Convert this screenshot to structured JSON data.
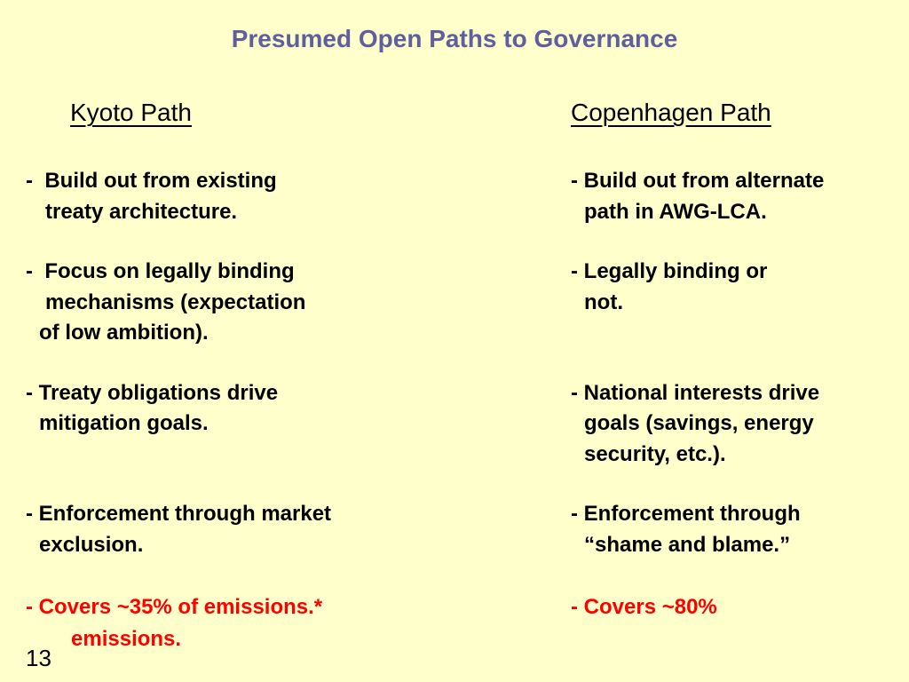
{
  "slide": {
    "title": "Presumed Open Paths to Governance",
    "page_number": "13"
  },
  "kyoto": {
    "heading": "Kyoto Path",
    "lines": [
      "-  Build out from existing",
      "treaty architecture.",
      "-  Focus on legally binding",
      "mechanisms (expectation",
      "of low ambition).",
      "- Treaty obligations drive",
      "mitigation goals.",
      "- Enforcement through market",
      "exclusion.",
      "- Covers ~35% of emissions.*",
      "emissions."
    ]
  },
  "copenhagen": {
    "heading": "Copenhagen Path",
    "lines": [
      "- Build out from alternate",
      "path in AWG-LCA.",
      "- Legally binding or",
      "not.",
      "- National interests drive",
      "goals (savings, energy",
      "security, etc.).",
      "- Enforcement through",
      "“shame and blame.”",
      "- Covers ~80%"
    ]
  },
  "colors": {
    "background": "#ffffcc",
    "title": "#5f5f9f",
    "highlight": "#ff0000"
  }
}
